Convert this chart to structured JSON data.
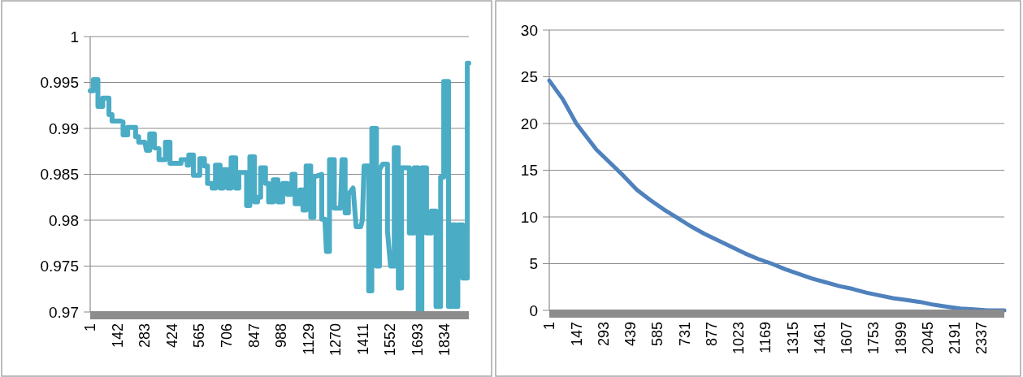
{
  "chart_data": [
    {
      "type": "line",
      "grid": "y",
      "marker": "none",
      "line_style": "solid",
      "x": [
        1,
        17,
        17,
        41,
        41,
        66,
        66,
        98,
        98,
        114,
        114,
        155,
        171,
        171,
        195,
        195,
        236,
        236,
        252,
        252,
        284,
        292,
        309,
        309,
        333,
        333,
        357,
        357,
        390,
        390,
        414,
        414,
        471,
        471,
        503,
        503,
        511,
        511,
        535,
        535,
        568,
        568,
        592,
        592,
        608,
        608,
        632,
        632,
        649,
        649,
        673,
        673,
        689,
        689,
        713,
        713,
        730,
        730,
        754,
        754,
        770,
        770,
        810,
        810,
        827,
        827,
        851,
        851,
        867,
        867,
        883,
        883,
        908,
        908,
        924,
        924,
        948,
        948,
        972,
        972,
        997,
        997,
        1021,
        1021,
        1045,
        1045,
        1061,
        1061,
        1086,
        1086,
        1102,
        1102,
        1118,
        1118,
        1142,
        1142,
        1158,
        1158,
        1199,
        1199,
        1215,
        1223,
        1239,
        1239,
        1264,
        1264,
        1296,
        1304,
        1320,
        1320,
        1337,
        1337,
        1361,
        1377,
        1401,
        1409,
        1418,
        1442,
        1442,
        1458,
        1458,
        1482,
        1482,
        1498,
        1498,
        1514,
        1539,
        1539,
        1555,
        1574,
        1574,
        1595,
        1595,
        1612,
        1612,
        1652,
        1652,
        1677,
        1677,
        1698,
        1698,
        1717,
        1717,
        1741,
        1741,
        1766,
        1766,
        1790,
        1790,
        1814,
        1814,
        1830,
        1830,
        1855,
        1855,
        1871,
        1871,
        1887,
        1887,
        1903,
        1903,
        1928,
        1928,
        1952,
        1952,
        1960
      ],
      "series": [
        {
          "color": "#4bacc6",
          "values": [
            0.9941,
            0.9941,
            0.9953,
            0.9953,
            0.9924,
            0.9924,
            0.9933,
            0.9933,
            0.9915,
            0.9915,
            0.9908,
            0.9908,
            0.9907,
            0.9893,
            0.9893,
            0.9901,
            0.9901,
            0.9891,
            0.9891,
            0.9885,
            0.9885,
            0.9876,
            0.9876,
            0.9894,
            0.9894,
            0.9879,
            0.9878,
            0.9866,
            0.9866,
            0.9885,
            0.9885,
            0.9862,
            0.9862,
            0.9866,
            0.9866,
            0.986,
            0.986,
            0.9871,
            0.9871,
            0.9849,
            0.9849,
            0.9867,
            0.9867,
            0.9859,
            0.9859,
            0.984,
            0.984,
            0.9835,
            0.9835,
            0.986,
            0.986,
            0.9835,
            0.9835,
            0.9855,
            0.9855,
            0.9835,
            0.9835,
            0.9868,
            0.9868,
            0.9835,
            0.9835,
            0.9852,
            0.9852,
            0.9816,
            0.9816,
            0.9869,
            0.9869,
            0.982,
            0.982,
            0.9825,
            0.9825,
            0.9857,
            0.9857,
            0.984,
            0.984,
            0.982,
            0.982,
            0.9844,
            0.9844,
            0.982,
            0.982,
            0.984,
            0.984,
            0.9828,
            0.9828,
            0.985,
            0.985,
            0.9818,
            0.9818,
            0.9833,
            0.9833,
            0.9811,
            0.9811,
            0.9859,
            0.9859,
            0.9803,
            0.9803,
            0.9847,
            0.985,
            0.9801,
            0.9801,
            0.9766,
            0.9766,
            0.9866,
            0.9866,
            0.9813,
            0.9813,
            0.9866,
            0.9866,
            0.9808,
            0.9808,
            0.9828,
            0.9835,
            0.9793,
            0.9793,
            0.98,
            0.9859,
            0.9859,
            0.9723,
            0.9723,
            0.99,
            0.99,
            0.975,
            0.975,
            0.9855,
            0.9861,
            0.9861,
            0.9788,
            0.975,
            0.975,
            0.9879,
            0.9879,
            0.9726,
            0.9726,
            0.9857,
            0.9857,
            0.9786,
            0.9786,
            0.9857,
            0.9857,
            0.97,
            0.97,
            0.9857,
            0.9857,
            0.9786,
            0.9786,
            0.981,
            0.981,
            0.9706,
            0.9706,
            0.9847,
            0.9847,
            0.9951,
            0.9951,
            0.9706,
            0.9706,
            0.9795,
            0.9795,
            0.9706,
            0.9706,
            0.9795,
            0.9795,
            0.9737,
            0.9737,
            0.9971,
            0.9971
          ]
        }
      ],
      "xlim": [
        1,
        1960
      ],
      "xticks": [
        1,
        142,
        283,
        424,
        565,
        706,
        847,
        988,
        1129,
        1270,
        1411,
        1552,
        1693,
        1834
      ],
      "ylim": [
        0.97,
        1
      ],
      "yticks": [
        0.97,
        0.975,
        0.98,
        0.985,
        0.99,
        0.995,
        1
      ]
    },
    {
      "type": "line",
      "grid": "y",
      "marker": "none",
      "line_style": "solid",
      "x": [
        1,
        74,
        147,
        256,
        329,
        402,
        475,
        547,
        620,
        693,
        766,
        839,
        912,
        985,
        1058,
        1130,
        1203,
        1276,
        1349,
        1422,
        1495,
        1568,
        1640,
        1713,
        1786,
        1859,
        1932,
        2005,
        2078,
        2150,
        2223,
        2296,
        2369,
        2460
      ],
      "series": [
        {
          "color": "#4f81bd",
          "values": [
            24.6,
            22.6,
            20,
            17.2,
            15.8,
            14.4,
            12.9,
            11.8,
            10.8,
            9.9,
            9,
            8.2,
            7.5,
            6.8,
            6.1,
            5.5,
            5,
            4.4,
            3.9,
            3.4,
            3,
            2.6,
            2.3,
            1.9,
            1.6,
            1.3,
            1.1,
            0.9,
            0.6,
            0.4,
            0.2,
            0.1,
            0,
            0
          ]
        }
      ],
      "xlim": [
        1,
        2460
      ],
      "xticks": [
        1,
        147,
        293,
        439,
        585,
        731,
        877,
        1023,
        1169,
        1315,
        1461,
        1607,
        1753,
        1899,
        2045,
        2191,
        2337
      ],
      "ylim": [
        0,
        30
      ],
      "yticks": [
        0,
        5,
        10,
        15,
        20,
        25,
        30
      ]
    }
  ]
}
